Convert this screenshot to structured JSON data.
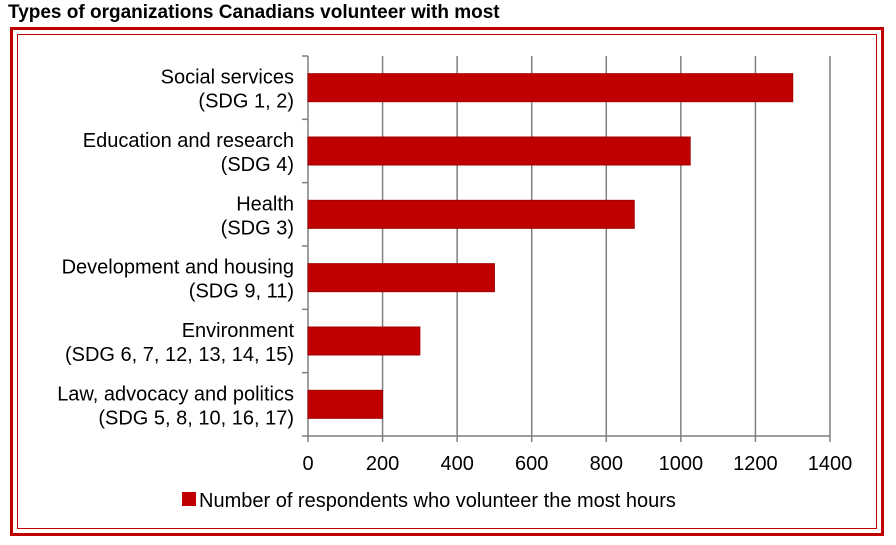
{
  "title": "Types of organizations Canadians volunteer with most",
  "colors": {
    "bar": "#c00000",
    "frame": "#c00000",
    "grid": "#7f7f7f"
  },
  "chart_data": {
    "type": "bar",
    "orientation": "horizontal",
    "categories": [
      [
        "Social services",
        "(SDG 1, 2)"
      ],
      [
        "Education and research",
        "(SDG 4)"
      ],
      [
        "Health",
        "(SDG 3)"
      ],
      [
        "Development and housing",
        "(SDG 9, 11)"
      ],
      [
        "Environment",
        "(SDG 6, 7, 12, 13, 14, 15)"
      ],
      [
        "Law, advocacy and politics",
        "(SDG 5, 8, 10, 16, 17)"
      ]
    ],
    "series": [
      {
        "name": "Number of respondents who volunteer the most hours",
        "values": [
          1300,
          1025,
          875,
          500,
          300,
          200
        ]
      }
    ],
    "xlim": [
      0,
      1400
    ],
    "xticks": [
      0,
      200,
      400,
      600,
      800,
      1000,
      1200,
      1400
    ],
    "grid": "vertical",
    "legend_position": "bottom"
  }
}
